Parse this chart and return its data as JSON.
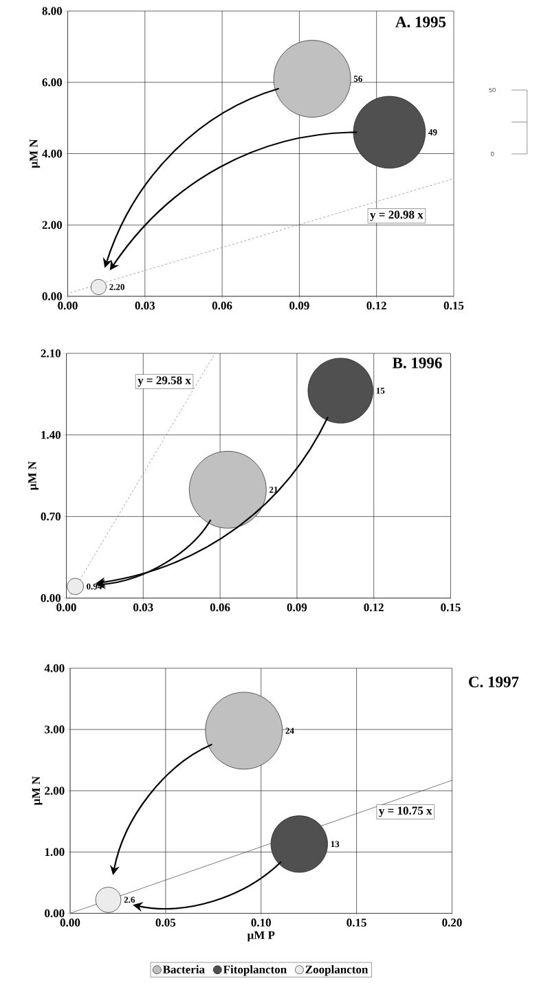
{
  "chart_data": [
    {
      "type": "bubble",
      "title": "A.  1995",
      "ylabel": "µM N",
      "xlim": [
        0,
        0.15
      ],
      "ylim": [
        0,
        8
      ],
      "xticks": [
        {
          "value": 0,
          "label": "0.00"
        },
        {
          "value": 0.03,
          "label": "0.03"
        },
        {
          "value": 0.06,
          "label": "0.06"
        },
        {
          "value": 0.09,
          "label": "0.09"
        },
        {
          "value": 0.12,
          "label": "0.12"
        },
        {
          "value": 0.15,
          "label": "0.15"
        }
      ],
      "yticks": [
        {
          "value": 0,
          "label": "0.00"
        },
        {
          "value": 2,
          "label": "2.00"
        },
        {
          "value": 4,
          "label": "4.00"
        },
        {
          "value": 6,
          "label": "6.00"
        },
        {
          "value": 8,
          "label": "8.00"
        }
      ],
      "grid": true,
      "series": [
        {
          "color": "#c0c0c0",
          "x": [
            0.095
          ],
          "values": [
            6.1
          ],
          "sizes": [
            56
          ],
          "value_labels": [
            "56"
          ]
        },
        {
          "color": "#505050",
          "x": [
            0.125
          ],
          "values": [
            4.6
          ],
          "sizes": [
            49
          ],
          "value_labels": [
            "49"
          ]
        },
        {
          "color": "#ececec",
          "x": [
            0.012
          ],
          "values": [
            0.26
          ],
          "sizes": [
            2.2
          ],
          "value_labels": [
            "2.20"
          ]
        },
        {
          "type": "line",
          "color": "#808080",
          "line_style": "dashed",
          "marker": "none",
          "x": [
            0.001,
            0.15
          ],
          "values": [
            0.1,
            3.3
          ]
        }
      ],
      "annotations": [
        "y = 20.98 x",
        "50",
        "0"
      ]
    },
    {
      "type": "bubble",
      "title": "B.  1996",
      "ylabel": "µM N",
      "xlim": [
        0,
        0.15
      ],
      "ylim": [
        0,
        2.1
      ],
      "xticks": [
        {
          "value": 0,
          "label": "0.00"
        },
        {
          "value": 0.03,
          "label": "0.03"
        },
        {
          "value": 0.06,
          "label": "0.06"
        },
        {
          "value": 0.09,
          "label": "0.09"
        },
        {
          "value": 0.12,
          "label": "0.12"
        },
        {
          "value": 0.15,
          "label": "0.15"
        }
      ],
      "yticks": [
        {
          "value": 0,
          "label": "0.00"
        },
        {
          "value": 0.7,
          "label": "0.70"
        },
        {
          "value": 1.4,
          "label": "1.40"
        },
        {
          "value": 2.1,
          "label": "2.10"
        }
      ],
      "grid": true,
      "series": [
        {
          "color": "#c0c0c0",
          "x": [
            0.063
          ],
          "values": [
            0.93
          ],
          "sizes": [
            21
          ],
          "value_labels": [
            "21"
          ]
        },
        {
          "color": "#505050",
          "x": [
            0.107
          ],
          "values": [
            1.78
          ],
          "sizes": [
            15
          ],
          "value_labels": [
            "15"
          ]
        },
        {
          "color": "#ececec",
          "x": [
            0.0035
          ],
          "values": [
            0.1
          ],
          "sizes": [
            0.94
          ],
          "value_labels": [
            "0.94"
          ]
        },
        {
          "type": "line",
          "color": "#808080",
          "line_style": "dashed",
          "marker": "none",
          "x": [
            0.001,
            0.058
          ],
          "values": [
            0,
            2.1
          ]
        }
      ],
      "annotations": [
        "y = 29.58 x"
      ]
    },
    {
      "type": "bubble",
      "title": "C.  1997",
      "ylabel": "µM N",
      "xlabel": "µM  P",
      "xlim": [
        0,
        0.2
      ],
      "ylim": [
        0,
        4
      ],
      "xticks": [
        {
          "value": 0,
          "label": "0.00"
        },
        {
          "value": 0.05,
          "label": "0.05"
        },
        {
          "value": 0.1,
          "label": "0.10"
        },
        {
          "value": 0.15,
          "label": "0.15"
        },
        {
          "value": 0.2,
          "label": "0.20"
        }
      ],
      "yticks": [
        {
          "value": 0,
          "label": "0.00"
        },
        {
          "value": 1,
          "label": "1.00"
        },
        {
          "value": 2,
          "label": "2.00"
        },
        {
          "value": 3,
          "label": "3.00"
        },
        {
          "value": 4,
          "label": "4.00"
        }
      ],
      "grid": true,
      "legend": "bottom",
      "series": [
        {
          "name": "Bacteria",
          "color": "#c0c0c0",
          "x": [
            0.091
          ],
          "values": [
            2.98
          ],
          "sizes": [
            24
          ],
          "value_labels": [
            "24"
          ]
        },
        {
          "name": "Fitoplancton",
          "color": "#505050",
          "x": [
            0.12
          ],
          "values": [
            1.13
          ],
          "sizes": [
            13
          ],
          "value_labels": [
            "13"
          ]
        },
        {
          "name": "Zooplancton",
          "color": "#ececec",
          "x": [
            0.02
          ],
          "values": [
            0.22
          ],
          "sizes": [
            2.6
          ],
          "value_labels": [
            "2.6"
          ]
        },
        {
          "type": "line",
          "color": "#404040",
          "line_style": "solid",
          "marker": "none",
          "x": [
            0,
            0.2
          ],
          "values": [
            0,
            2.17
          ]
        }
      ],
      "annotations": [
        "y = 10.75 x"
      ]
    }
  ]
}
